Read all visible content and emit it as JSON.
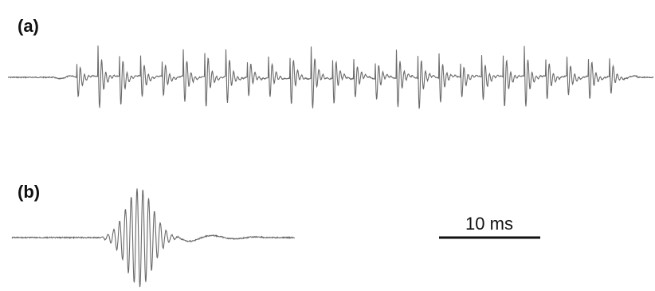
{
  "panels": {
    "a": "(a)",
    "b": "(b)"
  },
  "scale_bar": {
    "label": "10 ms"
  }
}
